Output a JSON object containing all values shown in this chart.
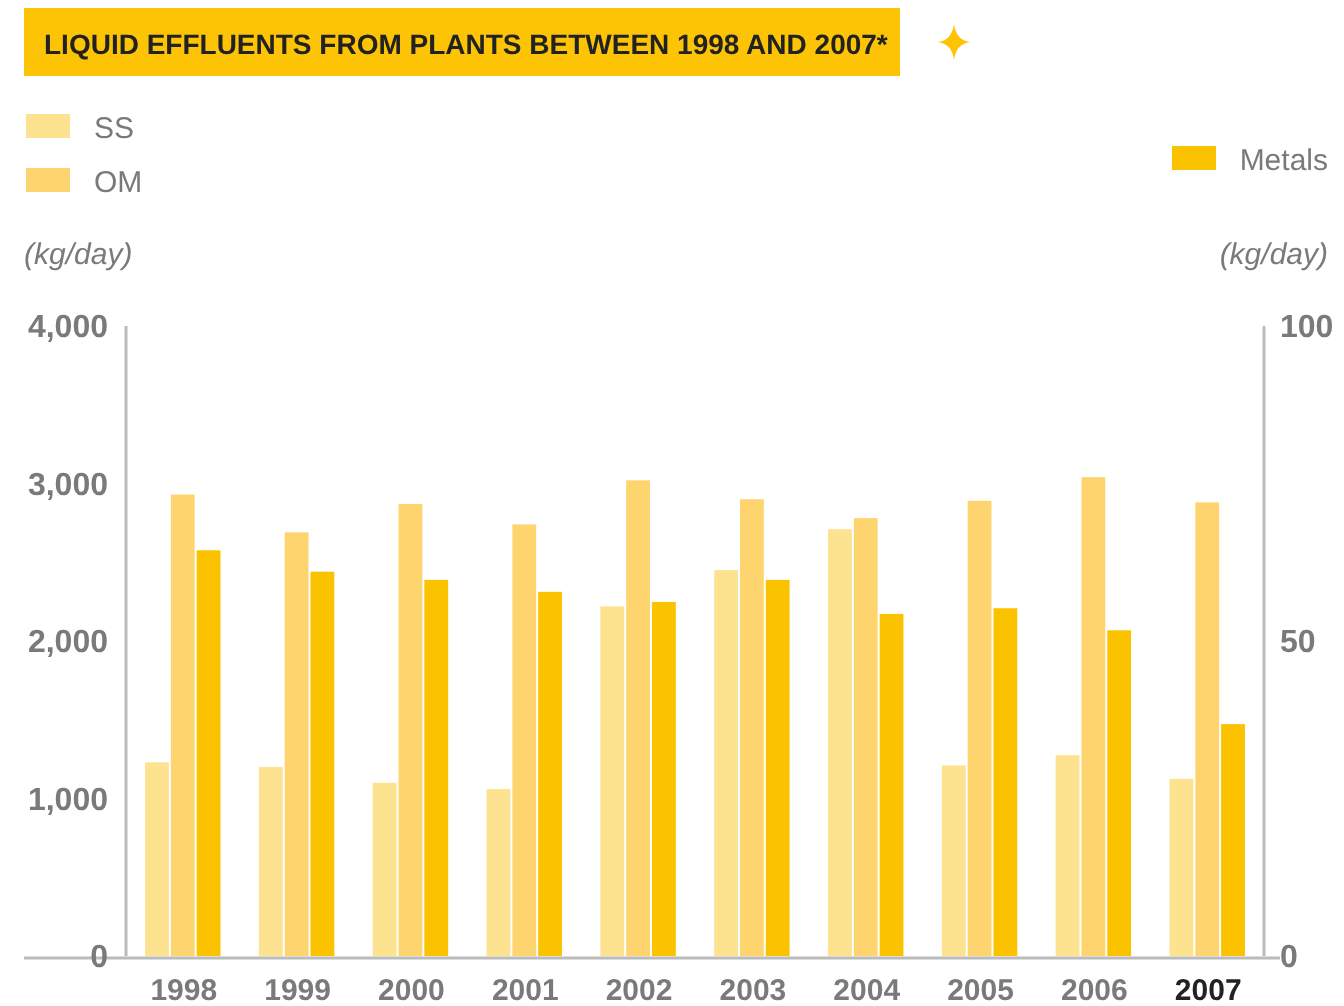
{
  "chart_data": {
    "type": "bar",
    "title": "LIQUID EFFLUENTS FROM PLANTS BETWEEN 1998 AND 2007*",
    "ylabel": "(kg/day)",
    "y2label": "(kg/day)",
    "categories": [
      "1998",
      "1999",
      "2000",
      "2001",
      "2002",
      "2003",
      "2004",
      "2005",
      "2006",
      "2007"
    ],
    "series": [
      {
        "name": "SS",
        "color": "#fde28f",
        "values": [
          1230,
          1200,
          1100,
          1060,
          2220,
          2450,
          2710,
          1210,
          1275,
          1125
        ]
      },
      {
        "name": "OM",
        "color": "#fdd46d",
        "values": [
          2930,
          2690,
          2870,
          2740,
          3020,
          2900,
          2780,
          2890,
          3040,
          2880
        ]
      },
      {
        "name": "Metals",
        "color": "#fbc200",
        "axis": "y2",
        "values": [
          64.4,
          61,
          59.7,
          57.8,
          56.2,
          59.7,
          54.3,
          55.2,
          51.7,
          36.8
        ]
      }
    ],
    "ylim": [
      0,
      4000
    ],
    "yticks": [
      0,
      {
        "value": 1000,
        "label": "1,000"
      },
      {
        "value": 2000,
        "label": "2,000"
      },
      {
        "value": 3000,
        "label": "3,000"
      },
      {
        "value": 4000,
        "label": "4,000"
      }
    ],
    "y2lim": [
      0,
      100
    ],
    "y2ticks": [
      0,
      50,
      100
    ],
    "grid": false,
    "legend": "top"
  }
}
